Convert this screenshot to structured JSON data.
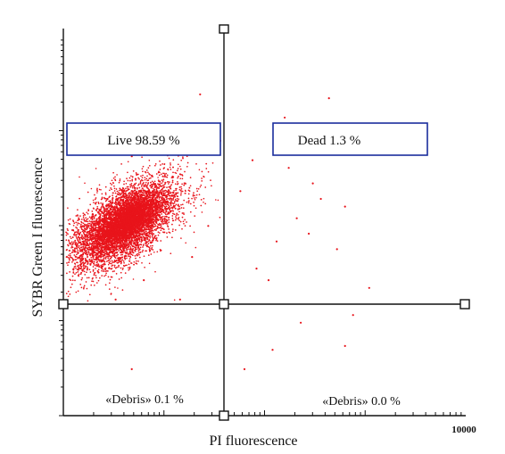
{
  "chart_data": {
    "type": "scatter",
    "title": "",
    "xlabel": "PI fluorescence",
    "ylabel": "SYBR Green I fluorescence",
    "x_scale": "log",
    "y_scale": "log",
    "x_tick_labels": [
      "10000"
    ],
    "gates": {
      "live": "Live 98.59 %",
      "dead": "Dead 1.3 %",
      "debris_left": "«Debris» 0.1 %",
      "debris_right": "«Debris» 0.0 %"
    },
    "quadrant_percent": {
      "live": 98.59,
      "dead": 1.3,
      "debris_left": 0.1,
      "debris_right": 0.0
    },
    "outlier_points": [
      [
        0.72,
        0.26
      ],
      [
        0.66,
        0.82
      ],
      [
        0.65,
        0.73
      ],
      [
        0.56,
        0.64
      ],
      [
        0.62,
        0.6
      ],
      [
        0.64,
        0.56
      ],
      [
        0.7,
        0.54
      ],
      [
        0.58,
        0.51
      ],
      [
        0.44,
        0.58
      ],
      [
        0.32,
        0.41
      ],
      [
        0.48,
        0.38
      ],
      [
        0.4,
        0.28
      ],
      [
        0.51,
        0.35
      ],
      [
        0.59,
        0.24
      ],
      [
        0.68,
        0.43
      ],
      [
        0.76,
        0.33
      ],
      [
        0.53,
        0.45
      ],
      [
        0.61,
        0.47
      ],
      [
        0.25,
        0.58
      ],
      [
        0.47,
        0.66
      ],
      [
        0.39,
        0.71
      ],
      [
        0.29,
        0.3
      ],
      [
        0.71,
        0.7
      ],
      [
        0.55,
        0.77
      ],
      [
        0.36,
        0.49
      ],
      [
        0.22,
        0.62
      ],
      [
        0.2,
        0.35
      ],
      [
        0.34,
        0.83
      ],
      [
        0.25,
        0.72
      ],
      [
        0.14,
        0.49
      ],
      [
        0.12,
        0.52
      ],
      [
        0.11,
        0.56
      ],
      [
        0.13,
        0.3
      ],
      [
        0.17,
        0.67
      ],
      [
        0.52,
        0.17
      ],
      [
        0.45,
        0.12
      ],
      [
        0.7,
        0.18
      ],
      [
        0.17,
        0.12
      ]
    ],
    "colors": {
      "points": "#e8141b",
      "gate_border": "#1a2d9c",
      "axis": "#111111"
    }
  }
}
